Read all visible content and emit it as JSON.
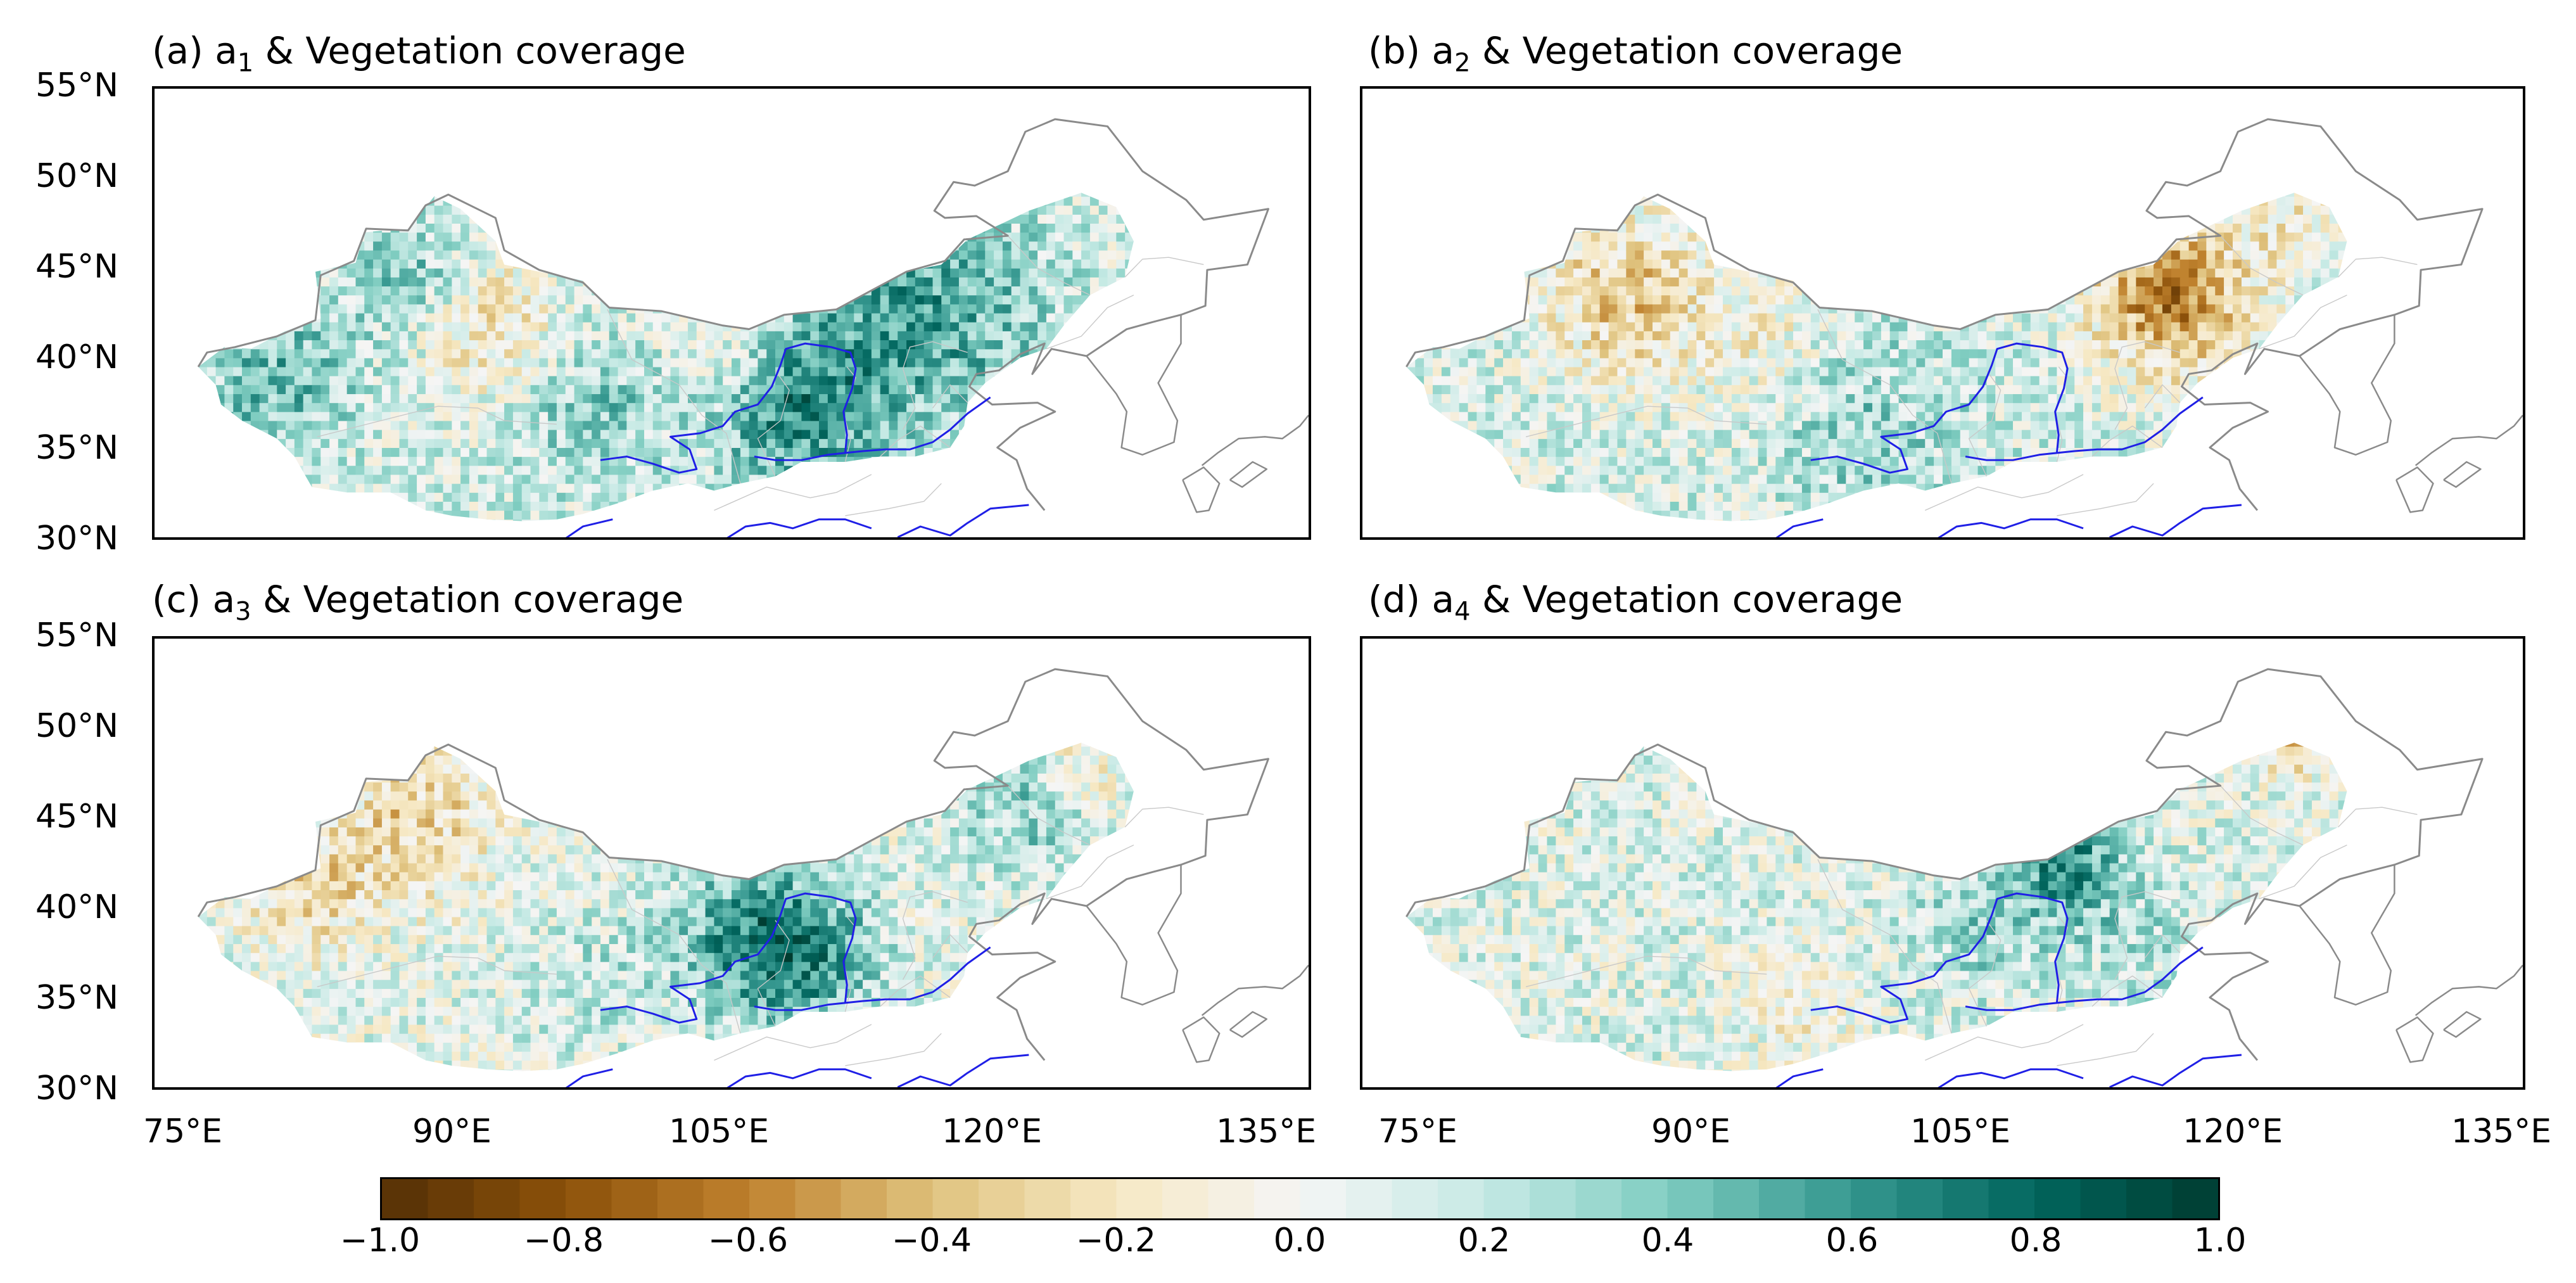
{
  "figure": {
    "panels": [
      {
        "id": "a",
        "prefix": "(a) a",
        "subscript": "1",
        "suffix": " & Vegetation coverage",
        "pattern": "greening_strong"
      },
      {
        "id": "b",
        "prefix": "(b) a",
        "subscript": "2",
        "suffix": " & Vegetation coverage",
        "pattern": "browning_north"
      },
      {
        "id": "c",
        "prefix": "(c) a",
        "subscript": "3",
        "suffix": " & Vegetation coverage",
        "pattern": "greening_loess"
      },
      {
        "id": "d",
        "prefix": "(d) a",
        "subscript": "4",
        "suffix": " & Vegetation coverage",
        "pattern": "weak_mixed"
      }
    ],
    "lat_ticks": [
      "55°N",
      "50°N",
      "45°N",
      "40°N",
      "35°N",
      "30°N"
    ],
    "lon_ticks": [
      "75°E",
      "90°E",
      "105°E",
      "120°E",
      "135°E"
    ],
    "colorbar": {
      "ticks": [
        "−1.0",
        "−0.8",
        "−0.6",
        "−0.4",
        "−0.2",
        "0.0",
        "0.2",
        "0.4",
        "0.6",
        "0.8",
        "1.0"
      ],
      "min": -1.0,
      "max": 1.0,
      "colors": [
        "#543005",
        "#8c510a",
        "#bf812d",
        "#dfc27d",
        "#f6e8c3",
        "#f5f5f5",
        "#c7eae5",
        "#80cdc1",
        "#35978f",
        "#01665e",
        "#003c30"
      ]
    },
    "map_colors": {
      "border": "#8a8a8a",
      "province": "#c8c8c8",
      "river": "#1f1fe6"
    }
  }
}
